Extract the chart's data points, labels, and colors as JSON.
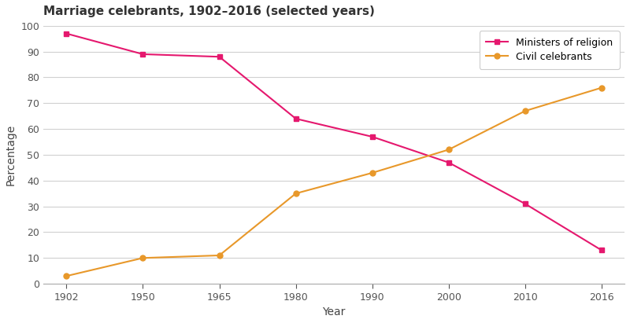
{
  "title": "Marriage celebrants, 1902–2016 (selected years)",
  "xlabel": "Year",
  "ylabel": "Percentage",
  "years": [
    1902,
    1950,
    1965,
    1980,
    1990,
    2000,
    2010,
    2016
  ],
  "ministers": [
    97,
    89,
    88,
    64,
    57,
    47,
    31,
    13
  ],
  "civil": [
    3,
    10,
    11,
    35,
    43,
    52,
    67,
    76
  ],
  "ministers_color": "#e5186e",
  "civil_color": "#e8982a",
  "ministers_label": "Ministers of religion",
  "civil_label": "Civil celebrants",
  "ylim": [
    0,
    100
  ],
  "yticks": [
    0,
    10,
    20,
    30,
    40,
    50,
    60,
    70,
    80,
    90,
    100
  ],
  "bg_color": "#ffffff",
  "grid_color": "#d0d0d0",
  "title_fontsize": 11,
  "axis_label_fontsize": 10,
  "tick_fontsize": 9,
  "legend_fontsize": 9,
  "line_width": 1.5,
  "marker_size": 5
}
